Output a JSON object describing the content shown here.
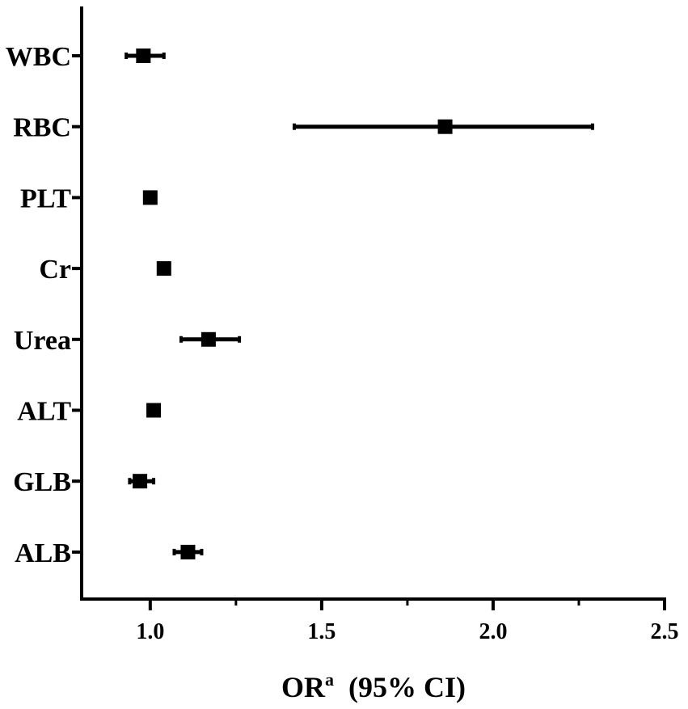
{
  "chart_data": {
    "type": "forest",
    "categories": [
      "WBC",
      "RBC",
      "PLT",
      "Cr",
      "Urea",
      "ALT",
      "GLB",
      "ALB"
    ],
    "series": [
      {
        "estimates": [
          0.98,
          1.86,
          1.0,
          1.04,
          1.17,
          1.01,
          0.97,
          1.11
        ],
        "ci_lower": [
          0.93,
          1.42,
          0.99,
          1.03,
          1.09,
          1.0,
          0.94,
          1.07
        ],
        "ci_upper": [
          1.04,
          2.29,
          1.01,
          1.05,
          1.26,
          1.02,
          1.01,
          1.15
        ]
      }
    ],
    "xlim": [
      0.8,
      2.5
    ],
    "x_major_ticks": [
      1.0,
      1.5,
      2.0,
      2.5
    ],
    "x_minor_ticks": [
      1.25,
      1.75,
      2.25
    ],
    "x_tick_labels": [
      "1.0",
      "1.5",
      "2.0",
      "2.5"
    ],
    "xlabel": "OR",
    "xlabel_superscript": "a",
    "xlabel_suffix": "(95% CI)",
    "grid": false,
    "marker": "square",
    "color": "#000000"
  }
}
